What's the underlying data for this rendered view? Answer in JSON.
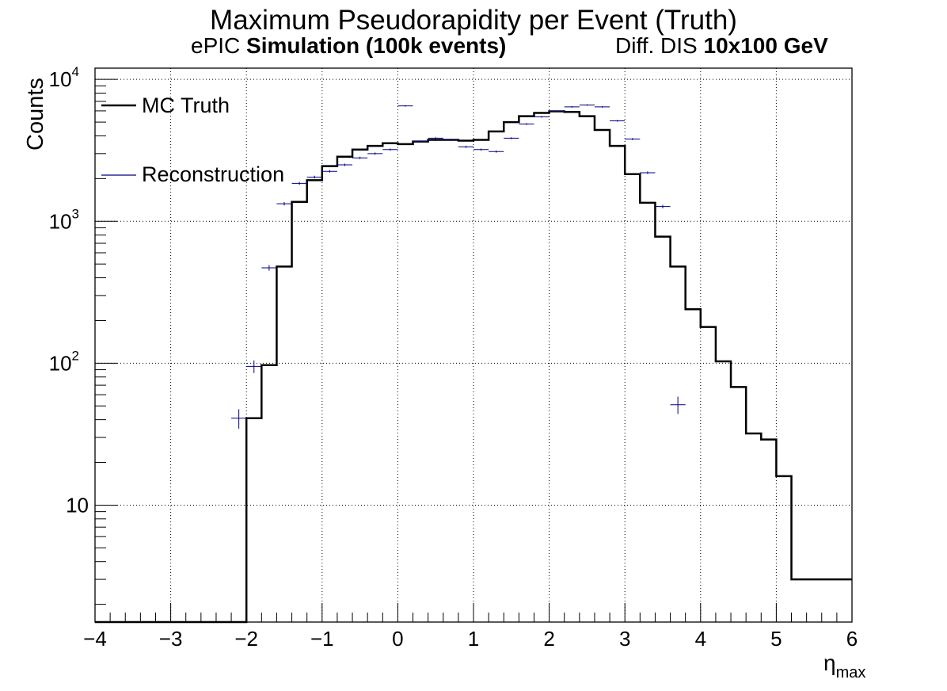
{
  "chart_data": {
    "type": "histogram",
    "title": "Maximum Pseudorapidity per Event (Truth)",
    "subtitle_left_plain": "ePIC",
    "subtitle_left_bold": "Simulation (100k events)",
    "subtitle_right_plain": "Diff. DIS",
    "subtitle_right_bold": "10x100 GeV",
    "xlabel": "η",
    "xlabel_sub": "max",
    "ylabel": "Counts",
    "xlim": [
      -4,
      6
    ],
    "ylim": [
      1.5,
      12000
    ],
    "yscale": "log",
    "grid": true,
    "legend_placement": "top-left",
    "x_ticks": [
      "−4",
      "−3",
      "−2",
      "−1",
      "0",
      "1",
      "2",
      "3",
      "4",
      "5",
      "6"
    ],
    "y_ticks": [
      {
        "base": "10",
        "exp": "4",
        "value": 10000
      },
      {
        "base": "10",
        "exp": "3",
        "value": 1000
      },
      {
        "base": "10",
        "exp": "2",
        "value": 100
      },
      {
        "base": "10",
        "exp": "",
        "value": 10
      }
    ],
    "bin_width": 0.2,
    "series": [
      {
        "name": "MC Truth",
        "style": "step",
        "color": "#000000",
        "bins_from": -4.0,
        "values": [
          0,
          0,
          0,
          0,
          0,
          0,
          0,
          0,
          0,
          0,
          41,
          97,
          480,
          1370,
          1950,
          2450,
          2850,
          3200,
          3400,
          3550,
          3500,
          3650,
          3750,
          3750,
          3700,
          3750,
          4300,
          5000,
          5500,
          5800,
          5950,
          5900,
          5500,
          4400,
          3400,
          2150,
          1350,
          780,
          480,
          240,
          180,
          103,
          68,
          32,
          29,
          16,
          3,
          3,
          3,
          3
        ]
      },
      {
        "name": "Reconstruction",
        "style": "error-points",
        "color": "#000080",
        "points": [
          {
            "x": -2.1,
            "y": 41
          },
          {
            "x": -1.9,
            "y": 95
          },
          {
            "x": -1.7,
            "y": 470
          },
          {
            "x": -1.5,
            "y": 1330
          },
          {
            "x": -1.3,
            "y": 1850
          },
          {
            "x": -1.1,
            "y": 2050
          },
          {
            "x": -0.9,
            "y": 2250
          },
          {
            "x": -0.7,
            "y": 2500
          },
          {
            "x": -0.5,
            "y": 2800
          },
          {
            "x": -0.3,
            "y": 3000
          },
          {
            "x": -0.1,
            "y": 3200
          },
          {
            "x": 0.1,
            "y": 6500
          },
          {
            "x": 0.3,
            "y": 3650
          },
          {
            "x": 0.5,
            "y": 3850
          },
          {
            "x": 0.7,
            "y": 3750
          },
          {
            "x": 0.9,
            "y": 3350
          },
          {
            "x": 1.1,
            "y": 3200
          },
          {
            "x": 1.3,
            "y": 3100
          },
          {
            "x": 1.5,
            "y": 3850
          },
          {
            "x": 1.7,
            "y": 4850
          },
          {
            "x": 1.9,
            "y": 5450
          },
          {
            "x": 2.1,
            "y": 5950
          },
          {
            "x": 2.3,
            "y": 6400
          },
          {
            "x": 2.5,
            "y": 6600
          },
          {
            "x": 2.7,
            "y": 6400
          },
          {
            "x": 2.9,
            "y": 5100
          },
          {
            "x": 3.1,
            "y": 3800
          },
          {
            "x": 3.3,
            "y": 2200
          },
          {
            "x": 3.5,
            "y": 1270
          },
          {
            "x": 3.7,
            "y": 51
          }
        ]
      }
    ]
  }
}
